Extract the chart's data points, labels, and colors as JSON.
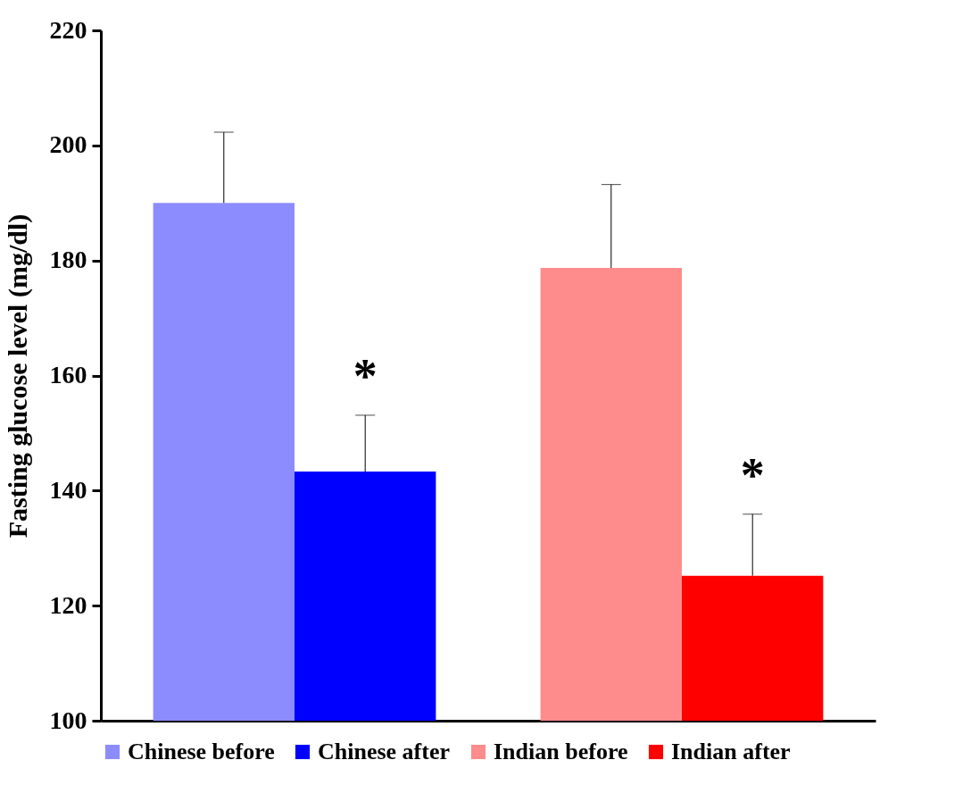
{
  "chart_data": {
    "type": "bar",
    "ylabel": "Fasting glucose level (mg/dl)",
    "categories": [
      null,
      null
    ],
    "series": [
      {
        "name": "Chinese before",
        "color": "#8c8cff",
        "values": [
          190,
          null
        ],
        "errors": [
          [
            190,
            202.3
          ],
          null
        ]
      },
      {
        "name": "Chinese after",
        "color": "#0000ff",
        "values": [
          143.3,
          null
        ],
        "errors": [
          [
            143.3,
            153.1
          ],
          null
        ]
      },
      {
        "name": "Indian before",
        "color": "#ff8c8c",
        "values": [
          null,
          178.7
        ],
        "errors": [
          null,
          [
            178.7,
            193.2
          ]
        ]
      },
      {
        "name": "Indian after",
        "color": "#ff0000",
        "values": [
          null,
          125.2
        ],
        "errors": [
          null,
          [
            125.2,
            135.9
          ]
        ]
      }
    ],
    "ylim": [
      100,
      220
    ],
    "yticks": [
      100,
      120,
      140,
      160,
      180,
      200,
      220
    ],
    "grid": false,
    "legend": "bottom",
    "tick_labels": "y",
    "annotations": [
      "*",
      "*"
    ]
  }
}
